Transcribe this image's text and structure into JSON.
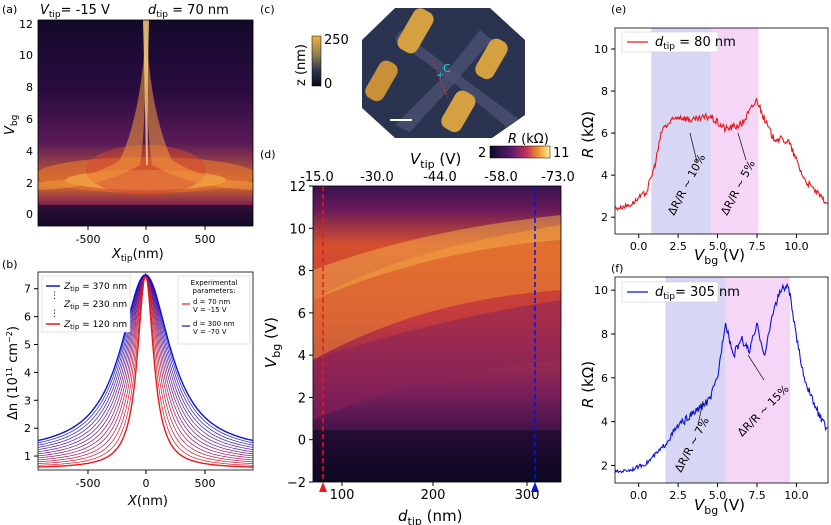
{
  "colors": {
    "red": "#e41a1c",
    "blue": "#0a14d2",
    "shade_blue": "#c9c9f2",
    "shade_pink": "#f2c8f4",
    "heat_low": "#0d0a2a",
    "heat_mid": "#b5205e",
    "heat_high": "#fff3a0"
  },
  "panel_a": {
    "letter": "(a)",
    "title_left": "V",
    "title_left_sub": "tip",
    "title_left_val": "= -15 V",
    "title_right": "d",
    "title_right_sub": "tip",
    "title_right_val": " = 70 nm",
    "xlabel": "X",
    "xlabel_sub": "tip",
    "xlabel_unit": "(nm)",
    "ylabel": "V",
    "ylabel_sub": "bg",
    "xticks": [
      "-500",
      "0",
      "500"
    ],
    "yticks": [
      "0",
      "2",
      "4",
      "6",
      "8",
      "10",
      "12"
    ]
  },
  "panel_b": {
    "letter": "(b)",
    "ylabel": "Δn (10",
    "ylabel_sup": "11",
    "ylabel_unit": " cm",
    "ylabel_unit_sup": "−2",
    "ylabel_close": ")",
    "xlabel": "X",
    "xlabel_unit": "(nm)",
    "xticks": [
      "-500",
      "0",
      "500"
    ],
    "yticks": [
      "1",
      "2",
      "3",
      "4",
      "5",
      "6",
      "7"
    ],
    "legend": [
      {
        "label": "Z",
        "sub": "tip",
        "val": " = 370 nm",
        "color": "#0a14d2"
      },
      {
        "label": "Z",
        "sub": "tip",
        "val": " = 230 nm",
        "color": "#b4b4c8"
      },
      {
        "label": "Z",
        "sub": "tip",
        "val": " = 120 nm",
        "color": "#e41a1c"
      }
    ],
    "exp_title1": "Experimental",
    "exp_title2": "parameters:",
    "exp_red1": "d   = 70 nm",
    "exp_red2": "V   = -15 V",
    "exp_blue1": "d   = 300 nm",
    "exp_blue2": "V   = -70 V",
    "exp_sub_d": "tip",
    "exp_sub_v": "tip"
  },
  "panel_c": {
    "letter": "(c)",
    "cbar_label": "z (nm)",
    "cbar_max": "250",
    "cbar_min": "0",
    "marker": "C"
  },
  "panel_d": {
    "letter": "(d)",
    "xlabel": "d",
    "xlabel_sub": "tip",
    "xlabel_unit": " (nm)",
    "ylabel": "V",
    "ylabel_sub": "bg",
    "ylabel_unit": " (V)",
    "top_label": "V",
    "top_label_sub": "tip",
    "top_label_unit": " (V)",
    "xticks": [
      "100",
      "200",
      "300"
    ],
    "yticks": [
      "−2",
      "0",
      "2",
      "4",
      "6",
      "8",
      "10",
      "12"
    ],
    "top_ticks": [
      "-15.0",
      "-30.0",
      "-44.0",
      "-58.0",
      "-73.0"
    ],
    "cbar_title": "R",
    "cbar_unit": " (kΩ)",
    "cbar_min": "2",
    "cbar_max": "11"
  },
  "panel_e": {
    "letter": "(e)",
    "legend_label": "d",
    "legend_sub": "tip",
    "legend_val": " = 80 nm",
    "xlabel": "V",
    "xlabel_sub": "bg",
    "xlabel_unit": " (V)",
    "ylabel": "R",
    "ylabel_unit": " (kΩ)",
    "xticks": [
      "0.0",
      "2.5",
      "5.0",
      "7.5",
      "10.0"
    ],
    "yticks": [
      "2",
      "4",
      "6",
      "8",
      "10"
    ],
    "annot1": "ΔR/R ~ 10%",
    "annot2": "ΔR/R ~ 5%"
  },
  "panel_f": {
    "letter": "(f)",
    "legend_label": "d",
    "legend_sub": "tip",
    "legend_val": "= 305 nm",
    "xlabel": "V",
    "xlabel_sub": "bg",
    "xlabel_unit": " (V)",
    "ylabel": "R",
    "ylabel_unit": " (kΩ)",
    "xticks": [
      "0.0",
      "2.5",
      "5.0",
      "7.5",
      "10.0"
    ],
    "yticks": [
      "2",
      "4",
      "6",
      "8",
      "10"
    ],
    "annot1": "ΔR/R ~ 7%",
    "annot2": "ΔR/R ~ 15%"
  },
  "chart_data": [
    {
      "type": "heatmap",
      "panel": "a",
      "xlim": [
        -880,
        880
      ],
      "ylim": [
        -1,
        12
      ],
      "description_values": {
        "x_center": 0
      }
    },
    {
      "type": "line",
      "panel": "b",
      "xlim": [
        -900,
        900
      ],
      "ylim": [
        0.5,
        7.6
      ],
      "peak": 7.5,
      "series": [
        {
          "name": "Z_tip = 370 nm",
          "x": [
            -900,
            -700,
            -500,
            -300,
            -150,
            0,
            150,
            300,
            500,
            700,
            900
          ],
          "values": [
            1.6,
            2.1,
            2.8,
            4.0,
            5.6,
            7.5,
            5.6,
            4.0,
            2.8,
            2.1,
            1.6
          ]
        },
        {
          "name": "Z_tip = 230 nm",
          "x": [
            -900,
            -700,
            -500,
            -300,
            -150,
            0,
            150,
            300,
            500,
            700,
            900
          ],
          "values": [
            1.1,
            1.5,
            2.0,
            3.0,
            4.6,
            7.5,
            4.6,
            3.0,
            2.0,
            1.5,
            1.1
          ]
        },
        {
          "name": "Z_tip = 120 nm",
          "x": [
            -900,
            -700,
            -500,
            -300,
            -150,
            0,
            150,
            300,
            500,
            700,
            900
          ],
          "values": [
            0.8,
            1.0,
            1.3,
            2.0,
            3.3,
            7.5,
            3.3,
            2.0,
            1.3,
            1.0,
            0.8
          ]
        }
      ]
    },
    {
      "type": "heatmap",
      "panel": "d",
      "xlim": [
        70,
        325
      ],
      "ylim": [
        -2,
        12
      ],
      "markers": [
        {
          "x": 80,
          "color": "red"
        },
        {
          "x": 305,
          "color": "blue"
        }
      ]
    },
    {
      "type": "line",
      "panel": "e",
      "xlim": [
        -1.5,
        12
      ],
      "ylim": [
        1.2,
        11
      ],
      "shaded": [
        {
          "from": 0.8,
          "to": 4.6,
          "color": "blue"
        },
        {
          "from": 4.6,
          "to": 7.6,
          "color": "pink"
        }
      ],
      "series": [
        {
          "name": "d_tip = 80 nm",
          "x": [
            -1.5,
            -0.5,
            0.5,
            1.0,
            1.5,
            2.5,
            3.5,
            4.5,
            5.5,
            6.5,
            7.5,
            8.0,
            8.5,
            9.5,
            10.5,
            11.5,
            12
          ],
          "values": [
            2.4,
            2.6,
            3.2,
            4.4,
            6.2,
            6.8,
            6.6,
            6.8,
            6.2,
            6.4,
            7.6,
            6.6,
            5.8,
            5.6,
            3.8,
            3.0,
            2.6
          ]
        }
      ]
    },
    {
      "type": "line",
      "panel": "f",
      "xlim": [
        -1.5,
        12
      ],
      "ylim": [
        1.2,
        10.6
      ],
      "shaded": [
        {
          "from": 1.7,
          "to": 5.5,
          "color": "blue"
        },
        {
          "from": 5.5,
          "to": 9.6,
          "color": "pink"
        }
      ],
      "series": [
        {
          "name": "d_tip = 305 nm",
          "x": [
            -1.5,
            -0.5,
            0.5,
            1.5,
            2.5,
            3.5,
            4.5,
            5.0,
            5.5,
            6.0,
            6.5,
            7.0,
            7.5,
            8.0,
            8.5,
            9.0,
            9.5,
            10.0,
            10.5,
            11.0,
            11.5,
            12
          ],
          "values": [
            1.7,
            1.8,
            2.1,
            2.8,
            3.8,
            4.4,
            5.0,
            6.0,
            8.6,
            7.0,
            7.8,
            7.2,
            8.4,
            7.0,
            9.0,
            10.0,
            10.2,
            7.8,
            6.0,
            5.0,
            4.2,
            3.6
          ]
        }
      ]
    }
  ]
}
